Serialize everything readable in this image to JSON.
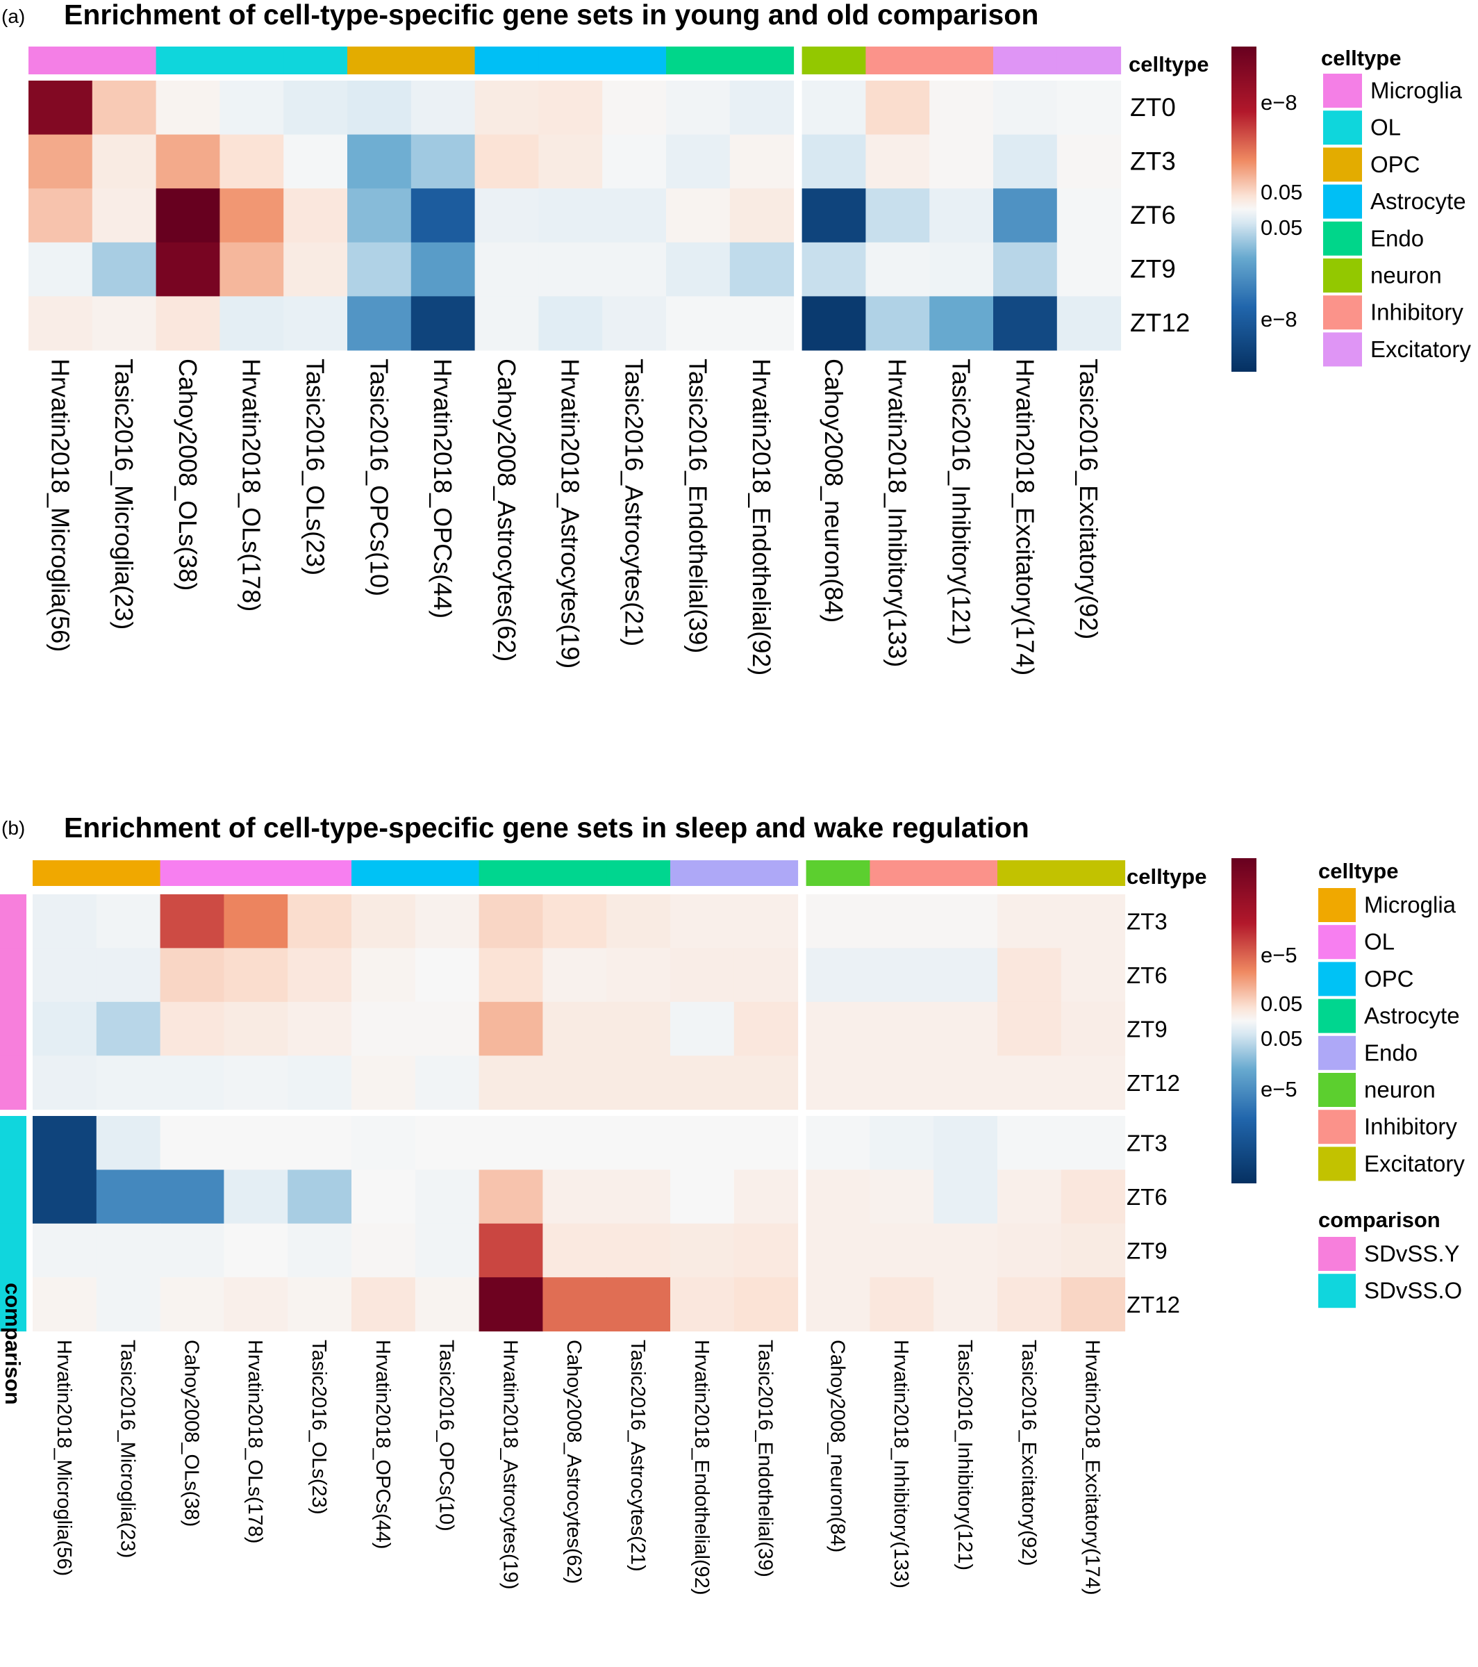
{
  "panels": [
    {
      "label": "(a)",
      "title": "Enrichment of cell-type-specific gene sets in young and old comparison",
      "celltype_header": "celltype",
      "rows": [
        "ZT0",
        "ZT3",
        "ZT6",
        "ZT9",
        "ZT12"
      ],
      "columns": [
        "Hrvatin2018_Microglia(56)",
        "Tasic2016_Microglia(23)",
        "Cahoy2008_OLs(38)",
        "Hrvatin2018_OLs(178)",
        "Tasic2016_OLs(23)",
        "Tasic2016_OPCs(10)",
        "Hrvatin2018_OPCs(44)",
        "Cahoy2008_Astrocytes(62)",
        "Hrvatin2018_Astrocytes(19)",
        "Tasic2016_Astrocytes(21)",
        "Tasic2016_Endothelial(39)",
        "Hrvatin2018_Endothelial(92)",
        "Cahoy2008_neuron(84)",
        "Hrvatin2018_Inhibitory(133)",
        "Tasic2016_Inhibitory(121)",
        "Hrvatin2018_Excitatory(174)",
        "Tasic2016_Excitatory(92)"
      ],
      "column_celltypes": [
        "Microglia",
        "Microglia",
        "OL",
        "OL",
        "OL",
        "OPC",
        "OPC",
        "Astrocyte",
        "Astrocyte",
        "Astrocyte",
        "Endo",
        "Endo",
        "neuron",
        "Inhibitory",
        "Inhibitory",
        "Excitatory",
        "Excitatory"
      ],
      "celltype_colors": {
        "Microglia": "#f47fe6",
        "OL": "#0fd6dc",
        "OPC": "#e3ac00",
        "Astrocyte": "#00bff5",
        "Endo": "#00d68a",
        "neuron": "#93c800",
        "Inhibitory": "#fb938a",
        "Excitatory": "#df95f5"
      },
      "legend_title": "celltype",
      "legend": [
        "Microglia",
        "OL",
        "OPC",
        "Astrocyte",
        "Endo",
        "neuron",
        "Inhibitory",
        "Excitatory"
      ],
      "colorbar_labels": {
        "top": "e−8",
        "mid_up": "0.05",
        "mid_down": "0.05",
        "bottom": "e−8"
      }
    },
    {
      "label": "(b)",
      "title": "Enrichment of cell-type-specific gene sets in sleep and wake regulation",
      "celltype_header": "celltype",
      "rows": [
        "ZT3",
        "ZT6",
        "ZT9",
        "ZT12",
        "ZT3",
        "ZT6",
        "ZT9",
        "ZT12"
      ],
      "row_groups": [
        "SDvSS.Y",
        "SDvSS.Y",
        "SDvSS.Y",
        "SDvSS.Y",
        "SDvSS.O",
        "SDvSS.O",
        "SDvSS.O",
        "SDvSS.O"
      ],
      "row_axis_label": "comparison",
      "columns": [
        "Hrvatin2018_Microglia(56)",
        "Tasic2016_Microglia(23)",
        "Cahoy2008_OLs(38)",
        "Hrvatin2018_OLs(178)",
        "Tasic2016_OLs(23)",
        "Hrvatin2018_OPCs(44)",
        "Tasic2016_OPCs(10)",
        "Hrvatin2018_Astrocytes(19)",
        "Cahoy2008_Astrocytes(62)",
        "Tasic2016_Astrocytes(21)",
        "Hrvatin2018_Endothelial(92)",
        "Tasic2016_Endothelial(39)",
        "Cahoy2008_neuron(84)",
        "Hrvatin2018_Inhibitory(133)",
        "Tasic2016_Inhibitory(121)",
        "Tasic2016_Excitatory(92)",
        "Hrvatin2018_Excitatory(174)"
      ],
      "column_celltypes": [
        "Microglia",
        "Microglia",
        "OL",
        "OL",
        "OL",
        "OPC",
        "OPC",
        "Astrocyte",
        "Astrocyte",
        "Astrocyte",
        "Endo",
        "Endo",
        "neuron",
        "Inhibitory",
        "Inhibitory",
        "Excitatory",
        "Excitatory"
      ],
      "celltype_colors": {
        "Microglia": "#f0a800",
        "OL": "#f77ff0",
        "OPC": "#00c2f5",
        "Astrocyte": "#00d68f",
        "Endo": "#aea8f7",
        "neuron": "#5ccf2f",
        "Inhibitory": "#fb928a",
        "Excitatory": "#c2c200"
      },
      "legend_title": "celltype",
      "legend": [
        "Microglia",
        "OL",
        "OPC",
        "Astrocyte",
        "Endo",
        "neuron",
        "Inhibitory",
        "Excitatory"
      ],
      "comparison_title": "comparison",
      "comparison_legend": [
        "SDvSS.Y",
        "SDvSS.O"
      ],
      "comparison_colors": {
        "SDvSS.Y": "#f77fdc",
        "SDvSS.O": "#10d6dd"
      },
      "colorbar_labels": {
        "top": "e−5",
        "mid_up": "0.05",
        "mid_down": "0.05",
        "bottom": "e−5"
      }
    }
  ],
  "chart_data": [
    {
      "type": "heatmap",
      "title": "Enrichment of cell-type-specific gene sets in young and old comparison",
      "scale": "signed enrichment; positive = red, negative = blue; range -1..1",
      "values": [
        [
          0.92,
          0.18,
          0.02,
          -0.03,
          -0.06,
          -0.08,
          -0.04,
          0.06,
          0.07,
          0.01,
          -0.02,
          -0.05,
          -0.03,
          0.12,
          0.01,
          -0.02,
          -0.01
        ],
        [
          0.28,
          0.06,
          0.28,
          0.1,
          -0.01,
          -0.36,
          -0.24,
          0.1,
          0.06,
          -0.01,
          -0.05,
          0.02,
          -0.1,
          0.04,
          0.01,
          -0.08,
          0.01
        ],
        [
          0.2,
          0.05,
          1.0,
          0.34,
          0.08,
          -0.3,
          -0.82,
          -0.04,
          -0.05,
          -0.05,
          0.02,
          0.06,
          -0.92,
          -0.14,
          -0.05,
          -0.52,
          -0.01
        ],
        [
          -0.03,
          -0.22,
          0.95,
          0.24,
          0.06,
          -0.2,
          -0.46,
          -0.02,
          -0.02,
          -0.02,
          -0.06,
          -0.16,
          -0.14,
          -0.02,
          -0.03,
          -0.18,
          -0.01
        ],
        [
          0.05,
          0.03,
          0.08,
          -0.06,
          -0.05,
          -0.5,
          -0.92,
          -0.02,
          -0.07,
          -0.04,
          -0.01,
          -0.01,
          -0.96,
          -0.2,
          -0.38,
          -0.9,
          -0.06
        ]
      ]
    },
    {
      "type": "heatmap",
      "title": "Enrichment of cell-type-specific gene sets in sleep and wake regulation",
      "scale": "signed enrichment; positive = red, negative = blue; range -1..1",
      "values": [
        [
          -0.04,
          -0.02,
          0.6,
          0.4,
          0.12,
          0.06,
          0.03,
          0.14,
          0.1,
          0.06,
          0.04,
          0.04,
          0.01,
          0.01,
          0.01,
          0.04,
          0.04
        ],
        [
          -0.04,
          -0.04,
          0.14,
          0.12,
          0.08,
          0.02,
          0.0,
          0.1,
          0.03,
          0.04,
          0.05,
          0.05,
          -0.04,
          -0.04,
          -0.04,
          0.08,
          0.04
        ],
        [
          -0.06,
          -0.18,
          0.08,
          0.06,
          0.04,
          0.01,
          0.01,
          0.24,
          0.06,
          0.06,
          -0.02,
          0.08,
          0.04,
          0.04,
          0.04,
          0.08,
          0.05
        ],
        [
          -0.04,
          -0.03,
          -0.03,
          -0.02,
          -0.03,
          0.02,
          -0.02,
          0.06,
          0.06,
          0.06,
          0.06,
          0.06,
          0.04,
          0.04,
          0.04,
          0.04,
          0.04
        ],
        [
          -0.92,
          -0.06,
          0.0,
          0.0,
          0.0,
          -0.01,
          0.0,
          0.0,
          0.0,
          0.0,
          0.0,
          0.0,
          -0.01,
          -0.03,
          -0.05,
          -0.01,
          -0.01
        ],
        [
          -0.92,
          -0.58,
          -0.58,
          -0.06,
          -0.22,
          0.0,
          -0.02,
          0.2,
          0.04,
          0.04,
          0.0,
          0.04,
          0.04,
          0.03,
          -0.05,
          0.04,
          0.08
        ],
        [
          -0.02,
          -0.02,
          -0.02,
          0.0,
          -0.02,
          0.01,
          -0.02,
          0.62,
          0.07,
          0.07,
          0.06,
          0.07,
          0.04,
          0.04,
          0.04,
          0.05,
          0.06
        ],
        [
          0.02,
          -0.02,
          0.02,
          0.04,
          0.02,
          0.08,
          0.02,
          0.98,
          0.48,
          0.48,
          0.08,
          0.1,
          0.04,
          0.08,
          0.04,
          0.08,
          0.14
        ]
      ]
    }
  ]
}
